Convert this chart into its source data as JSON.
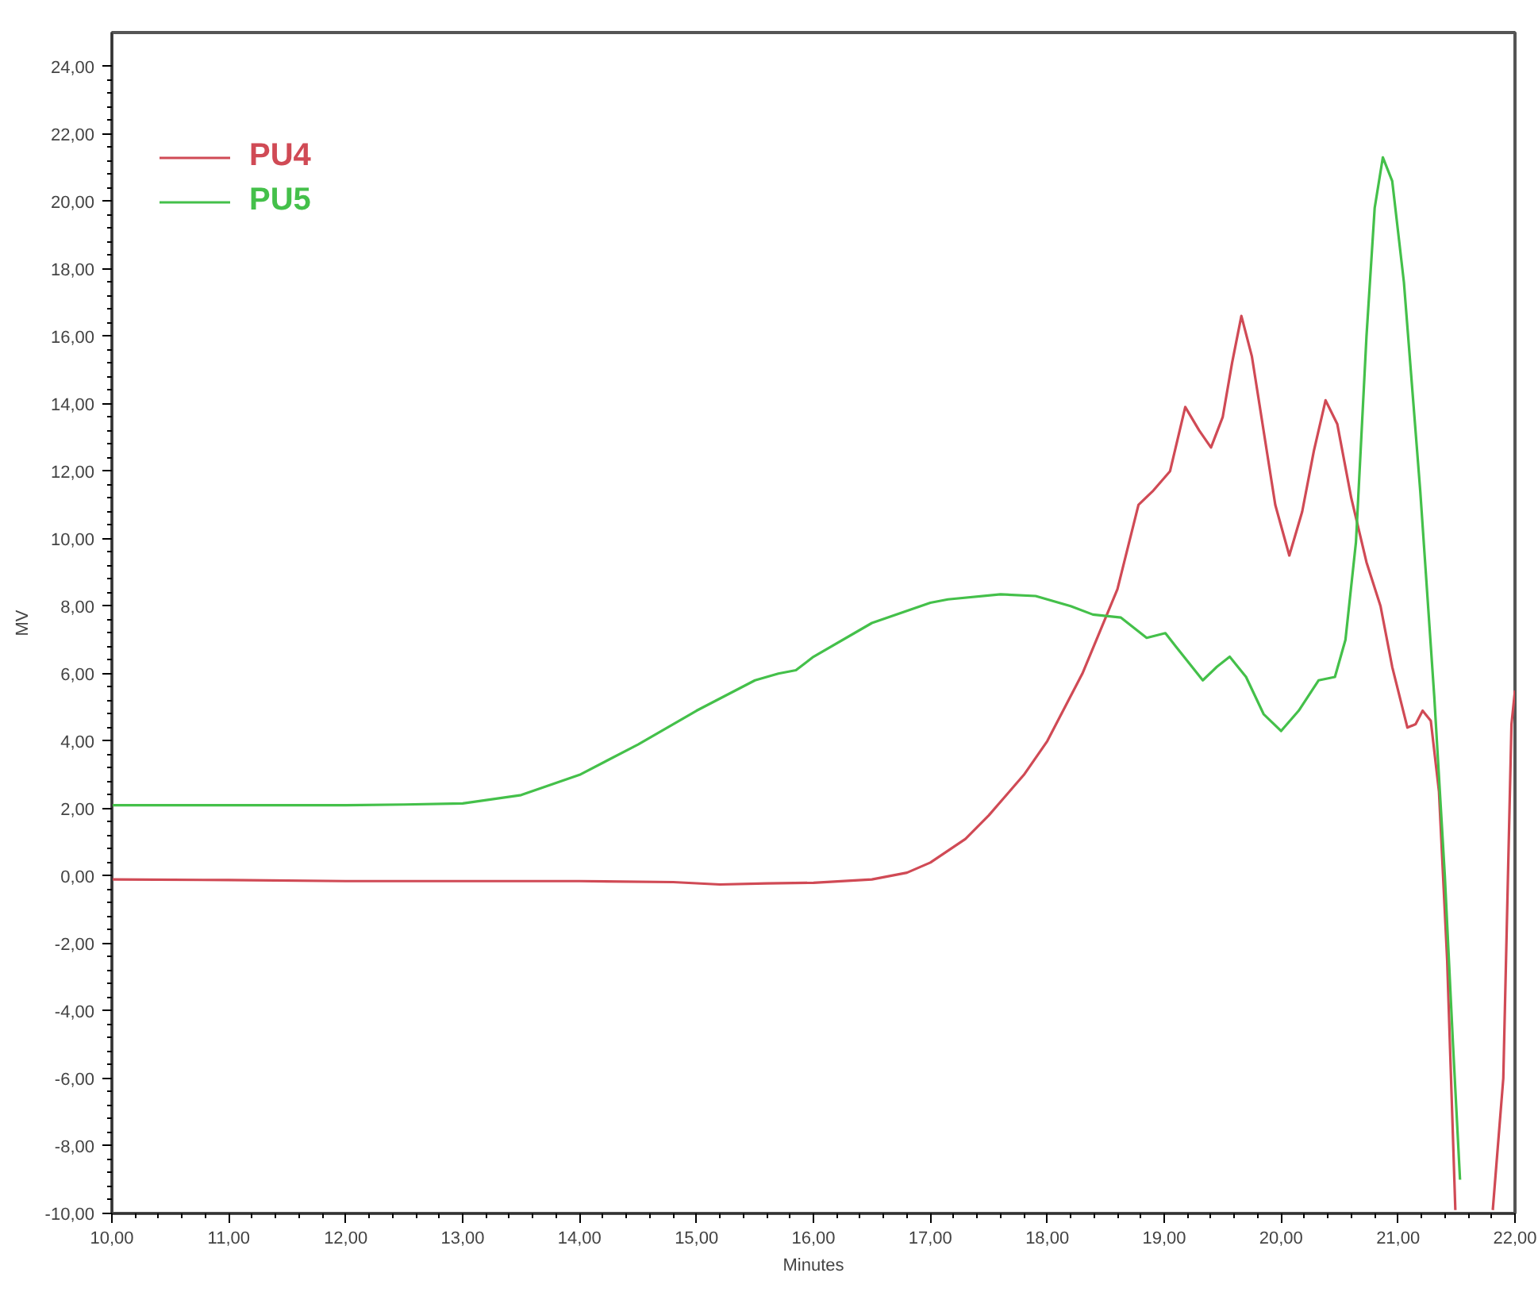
{
  "chart_data": {
    "type": "line",
    "xlabel": "Minutes",
    "ylabel": "MV",
    "xlim": [
      10,
      22
    ],
    "ylim": [
      -10,
      25
    ],
    "xticks": [
      {
        "value": 10,
        "label": "10,00"
      },
      {
        "value": 11,
        "label": "11,00"
      },
      {
        "value": 12,
        "label": "12,00"
      },
      {
        "value": 13,
        "label": "13,00"
      },
      {
        "value": 14,
        "label": "14,00"
      },
      {
        "value": 15,
        "label": "15,00"
      },
      {
        "value": 16,
        "label": "16,00"
      },
      {
        "value": 17,
        "label": "17,00"
      },
      {
        "value": 18,
        "label": "18,00"
      },
      {
        "value": 19,
        "label": "19,00"
      },
      {
        "value": 20,
        "label": "20,00"
      },
      {
        "value": 21,
        "label": "21,00"
      },
      {
        "value": 22,
        "label": "22,00"
      }
    ],
    "yticks": [
      {
        "value": -10,
        "label": "-10,00"
      },
      {
        "value": -8,
        "label": "-8,00"
      },
      {
        "value": -6,
        "label": "-6,00"
      },
      {
        "value": -4,
        "label": "-4,00"
      },
      {
        "value": -2,
        "label": "-2,00"
      },
      {
        "value": 0,
        "label": "0,00"
      },
      {
        "value": 2,
        "label": "2,00"
      },
      {
        "value": 4,
        "label": "4,00"
      },
      {
        "value": 6,
        "label": "6,00"
      },
      {
        "value": 8,
        "label": "8,00"
      },
      {
        "value": 10,
        "label": "10,00"
      },
      {
        "value": 12,
        "label": "12,00"
      },
      {
        "value": 14,
        "label": "14,00"
      },
      {
        "value": 16,
        "label": "16,00"
      },
      {
        "value": 18,
        "label": "18,00"
      },
      {
        "value": 20,
        "label": "20,00"
      },
      {
        "value": 22,
        "label": "22,00"
      },
      {
        "value": 24,
        "label": "24,00"
      }
    ],
    "grid": false,
    "legend": "top left",
    "marker": "none",
    "line_style": "solid",
    "series": [
      {
        "name": "PU4",
        "color": "#d04a55",
        "x": [
          10,
          11,
          12,
          13,
          14,
          14.8,
          15.2,
          15.6,
          16,
          16.5,
          16.8,
          17,
          17.3,
          17.5,
          17.8,
          18,
          18.3,
          18.6,
          18.78,
          18.9,
          19.05,
          19.18,
          19.3,
          19.4,
          19.5,
          19.58,
          19.66,
          19.75,
          19.85,
          19.95,
          20.07,
          20.18,
          20.28,
          20.38,
          20.48,
          20.6,
          20.73,
          20.85,
          20.95,
          21.08,
          21.15,
          21.21,
          21.28,
          21.35,
          21.42,
          21.49,
          21.65,
          21.81,
          21.9,
          21.97,
          22
        ],
        "values": [
          -0.1,
          -0.12,
          -0.15,
          -0.15,
          -0.15,
          -0.18,
          -0.25,
          -0.22,
          -0.2,
          -0.1,
          0.1,
          0.4,
          1.1,
          1.8,
          3.0,
          4.0,
          6.0,
          8.5,
          11.0,
          11.4,
          12.0,
          13.9,
          13.2,
          12.7,
          13.6,
          15.2,
          16.6,
          15.4,
          13.2,
          11.0,
          9.5,
          10.8,
          12.6,
          14.1,
          13.4,
          11.2,
          9.3,
          8.0,
          6.2,
          4.4,
          4.5,
          4.9,
          4.6,
          2.5,
          -2.5,
          -9.9,
          null,
          -9.9,
          -6,
          4.5,
          5.5
        ]
      },
      {
        "name": "PU5",
        "color": "#44c04a",
        "x": [
          10,
          11,
          12,
          12.5,
          13,
          13.5,
          14,
          14.5,
          15,
          15.5,
          15.7,
          15.85,
          16,
          16.5,
          17,
          17.15,
          17.6,
          17.9,
          18.2,
          18.39,
          18.63,
          18.85,
          19.01,
          19.1,
          19.33,
          19.45,
          19.56,
          19.7,
          19.85,
          20,
          20.15,
          20.32,
          20.46,
          20.55,
          20.64,
          20.73,
          20.8,
          20.87,
          20.95,
          21.05,
          21.19,
          21.31,
          21.4,
          21.47,
          21.53
        ],
        "values": [
          2.1,
          2.1,
          2.1,
          2.12,
          2.15,
          2.4,
          3.0,
          3.9,
          4.9,
          5.8,
          6.0,
          6.1,
          6.5,
          7.5,
          8.1,
          8.2,
          8.35,
          8.3,
          8.0,
          7.75,
          7.66,
          7.06,
          7.2,
          6.8,
          5.8,
          6.2,
          6.5,
          5.9,
          4.8,
          4.3,
          4.9,
          5.8,
          5.9,
          7.0,
          9.9,
          16.0,
          19.8,
          21.3,
          20.6,
          17.6,
          11.4,
          5.3,
          0.0,
          -5.0,
          -9.0
        ]
      }
    ]
  }
}
